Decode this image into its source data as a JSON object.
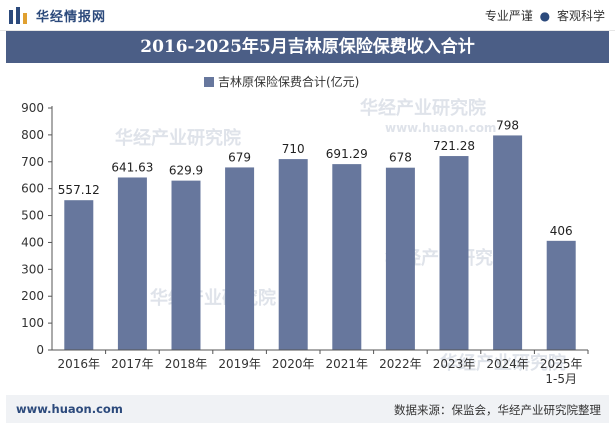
{
  "header": {
    "brand": "华经情报网",
    "slogan_left": "专业严谨",
    "slogan_sep": "●",
    "slogan_right": "客观科学"
  },
  "footer": {
    "website": "www.huaon.com",
    "source": "数据来源：保监会，华经产业研究院整理"
  },
  "colors": {
    "bar": "#67779d",
    "title_bg": "#4b5e86",
    "brand": "#2c4a7c"
  },
  "chart_data": {
    "type": "bar",
    "title": "2016-2025年5月吉林原保险保费收入合计",
    "legend_position": "top",
    "categories": [
      "2016年",
      "2017年",
      "2018年",
      "2019年",
      "2020年",
      "2021年",
      "2022年",
      "2023年",
      "2024年",
      "2025年\n1-5月"
    ],
    "series": [
      {
        "name": "吉林原保险保费合计(亿元)",
        "values": [
          557.12,
          641.63,
          629.9,
          679,
          710,
          691.29,
          678,
          721.28,
          798,
          406
        ]
      }
    ],
    "data_labels": [
      "557.12",
      "641.63",
      "629.9",
      "679",
      "710",
      "691.29",
      "678",
      "721.28",
      "798",
      "406"
    ],
    "yticks": [
      0,
      100,
      200,
      300,
      400,
      500,
      600,
      700,
      800,
      900
    ],
    "ylim": [
      0,
      900
    ],
    "grid": false
  }
}
